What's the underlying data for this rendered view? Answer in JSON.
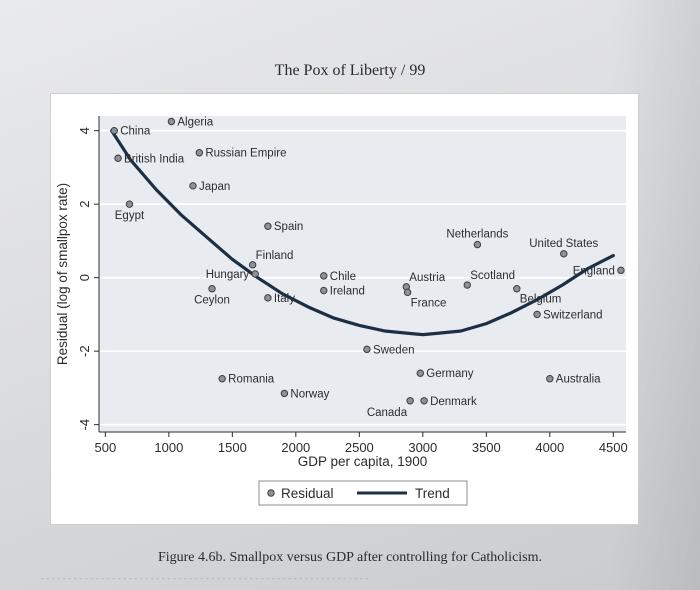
{
  "page": {
    "running_head": "The Pox of Liberty / 99",
    "caption": "Figure 4.6b. Smallpox versus GDP after controlling for Catholicism."
  },
  "colors": {
    "plot_bg": "#e8ecf0",
    "grid": "#ffffff",
    "point_fill": "#8e9296",
    "point_stroke": "#3a3d40",
    "trend": "#1d2f44",
    "text": "#2a2d30"
  },
  "chart_data": {
    "type": "scatter",
    "title": "",
    "xlabel": "GDP per capita, 1900",
    "ylabel": "Residual (log of smallpox rate)",
    "xlim": [
      450,
      4600
    ],
    "ylim": [
      -4.2,
      4.4
    ],
    "xticks": [
      500,
      1000,
      1500,
      2000,
      2500,
      3000,
      3500,
      4000,
      4500
    ],
    "yticks": [
      -4,
      -2,
      0,
      2,
      4
    ],
    "grid": true,
    "legend": {
      "position": "bottom",
      "entries": [
        "Residual",
        "Trend"
      ]
    },
    "series": [
      {
        "name": "Residual",
        "points": [
          {
            "label": "Algeria",
            "x": 1020,
            "y": 4.25,
            "side": "right"
          },
          {
            "label": "China",
            "x": 570,
            "y": 4.0,
            "side": "right"
          },
          {
            "label": "British India",
            "x": 600,
            "y": 3.25,
            "side": "right"
          },
          {
            "label": "Russian Empire",
            "x": 1240,
            "y": 3.4,
            "side": "right"
          },
          {
            "label": "Japan",
            "x": 1190,
            "y": 2.5,
            "side": "right"
          },
          {
            "label": "Egypt",
            "x": 690,
            "y": 2.0,
            "side": "below"
          },
          {
            "label": "Spain",
            "x": 1780,
            "y": 1.4,
            "side": "right"
          },
          {
            "label": "Finland",
            "x": 1660,
            "y": 0.35,
            "side": "above-right"
          },
          {
            "label": "Hungary",
            "x": 1680,
            "y": 0.1,
            "side": "left"
          },
          {
            "label": "Ceylon",
            "x": 1340,
            "y": -0.3,
            "side": "below"
          },
          {
            "label": "Italy",
            "x": 1780,
            "y": -0.55,
            "side": "right"
          },
          {
            "label": "Chile",
            "x": 2220,
            "y": 0.05,
            "side": "right"
          },
          {
            "label": "Ireland",
            "x": 2220,
            "y": -0.35,
            "side": "right"
          },
          {
            "label": "Netherlands",
            "x": 3430,
            "y": 0.9,
            "side": "above"
          },
          {
            "label": "United States",
            "x": 4110,
            "y": 0.65,
            "side": "above"
          },
          {
            "label": "Austria",
            "x": 2870,
            "y": -0.25,
            "side": "above-right"
          },
          {
            "label": "France",
            "x": 2880,
            "y": -0.4,
            "side": "below-right"
          },
          {
            "label": "Scotland",
            "x": 3350,
            "y": -0.2,
            "side": "above-right"
          },
          {
            "label": "England",
            "x": 4560,
            "y": 0.2,
            "side": "left"
          },
          {
            "label": "Belgium",
            "x": 3740,
            "y": -0.3,
            "side": "below-right"
          },
          {
            "label": "Switzerland",
            "x": 3900,
            "y": -1.0,
            "side": "right"
          },
          {
            "label": "Sweden",
            "x": 2560,
            "y": -1.95,
            "side": "right"
          },
          {
            "label": "Germany",
            "x": 2980,
            "y": -2.6,
            "side": "right"
          },
          {
            "label": "Australia",
            "x": 4000,
            "y": -2.75,
            "side": "right"
          },
          {
            "label": "Romania",
            "x": 1420,
            "y": -2.75,
            "side": "right"
          },
          {
            "label": "Norway",
            "x": 1910,
            "y": -3.15,
            "side": "right"
          },
          {
            "label": "Canada",
            "x": 2900,
            "y": -3.35,
            "side": "below-left"
          },
          {
            "label": "Denmark",
            "x": 3010,
            "y": -3.35,
            "side": "right"
          }
        ]
      },
      {
        "name": "Trend",
        "type": "line",
        "x": [
          550,
          700,
          900,
          1100,
          1300,
          1500,
          1700,
          1900,
          2100,
          2300,
          2500,
          2700,
          2900,
          3000,
          3100,
          3300,
          3500,
          3700,
          3900,
          4100,
          4300,
          4500
        ],
        "y": [
          4.0,
          3.2,
          2.4,
          1.7,
          1.1,
          0.5,
          0.0,
          -0.45,
          -0.8,
          -1.1,
          -1.3,
          -1.45,
          -1.52,
          -1.55,
          -1.52,
          -1.45,
          -1.25,
          -0.95,
          -0.6,
          -0.2,
          0.25,
          0.6
        ]
      }
    ]
  }
}
